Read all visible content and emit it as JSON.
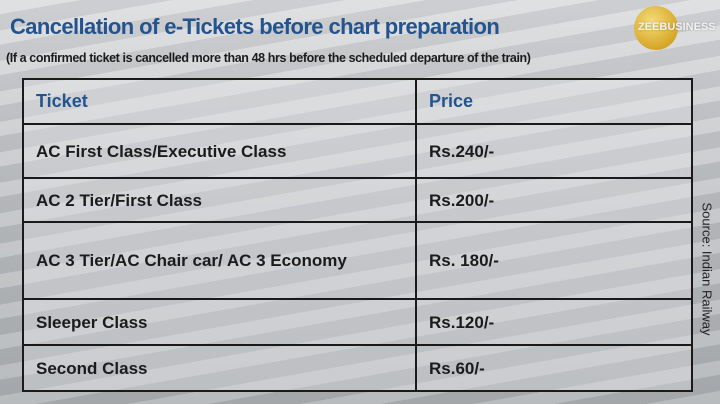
{
  "title": "Cancellation of e-Tickets before chart preparation",
  "subtitle": "(If a confirmed ticket is cancelled more than 48 hrs before the scheduled departure of the train)",
  "logo": "ZEEBUSINESS",
  "table": {
    "headers": [
      "Ticket",
      "Price"
    ],
    "rows": [
      {
        "ticket": "AC First Class/Executive Class",
        "price": "Rs.240/-"
      },
      {
        "ticket": "AC 2 Tier/First Class",
        "price": "Rs.200/-"
      },
      {
        "ticket": "AC 3 Tier/AC Chair car/ AC 3 Economy",
        "price": "Rs. 180/-"
      },
      {
        "ticket": "Sleeper Class",
        "price": "Rs.120/-"
      },
      {
        "ticket": "Second Class",
        "price": "Rs.60/-"
      }
    ]
  },
  "source": "Source: Indian Railway",
  "colors": {
    "title": "#24548f",
    "logo_gold": "#d6a728"
  }
}
